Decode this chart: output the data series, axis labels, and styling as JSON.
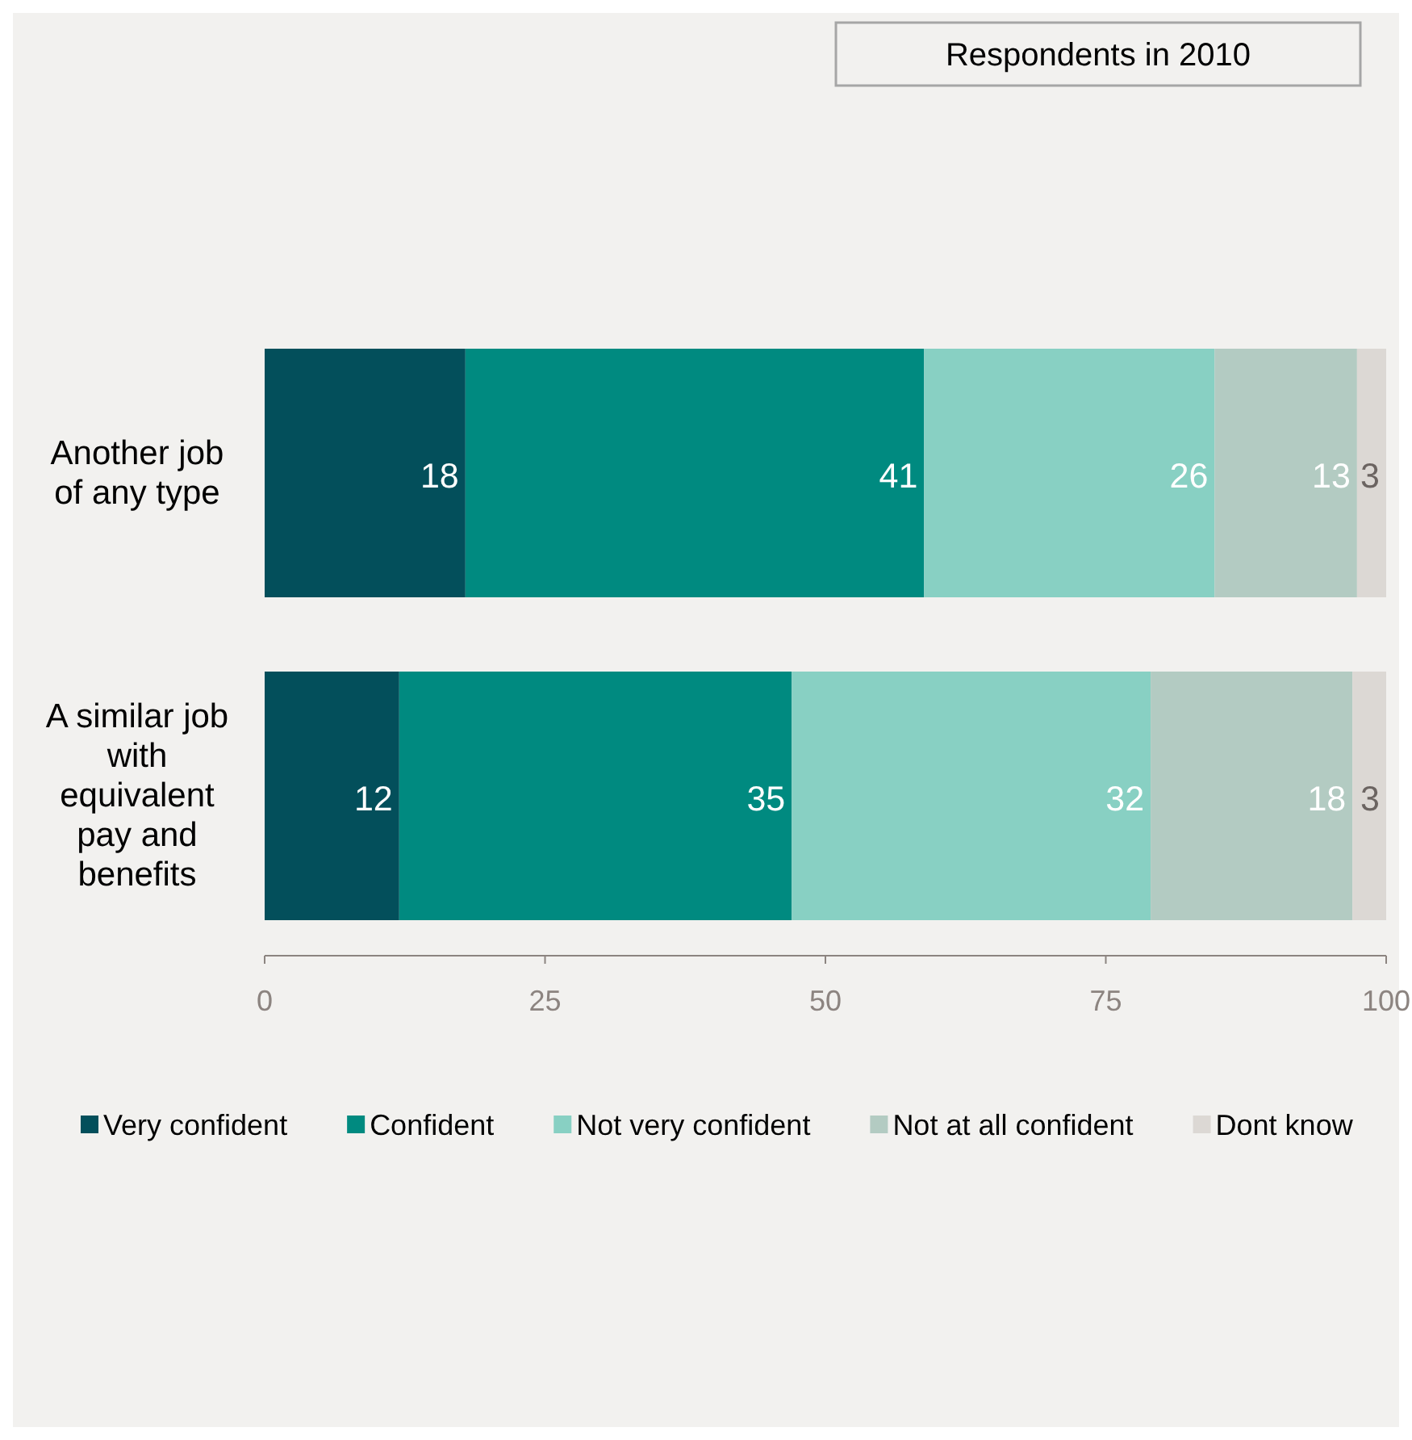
{
  "chart_data": {
    "type": "bar",
    "orientation": "horizontal",
    "stacked": true,
    "title": "Respondents in 2010",
    "categories": [
      "Another job of any type",
      "A similar job with equivalent pay and benefits"
    ],
    "series": [
      {
        "name": "Very confident",
        "color": "#034f5b",
        "values": [
          17.9,
          12
        ],
        "value_labels": [
          "18",
          "12"
        ]
      },
      {
        "name": "Confident",
        "color": "#008a80",
        "values": [
          40.9,
          35
        ],
        "value_labels": [
          "41",
          "35"
        ]
      },
      {
        "name": "Not very confident",
        "color": "#88d0c3",
        "values": [
          25.9,
          32
        ],
        "value_labels": [
          "26",
          "32"
        ]
      },
      {
        "name": "Not at all confident",
        "color": "#b3cbc2",
        "values": [
          12.7,
          18
        ],
        "value_labels": [
          "13",
          "18"
        ]
      },
      {
        "name": "Dont know",
        "color": "#dcd8d4",
        "values": [
          2.6,
          3
        ],
        "value_labels": [
          "3",
          "3"
        ]
      }
    ],
    "xlim": [
      0,
      100
    ],
    "xticks": [
      0,
      25,
      50,
      75,
      100
    ],
    "legend": "bottom"
  }
}
